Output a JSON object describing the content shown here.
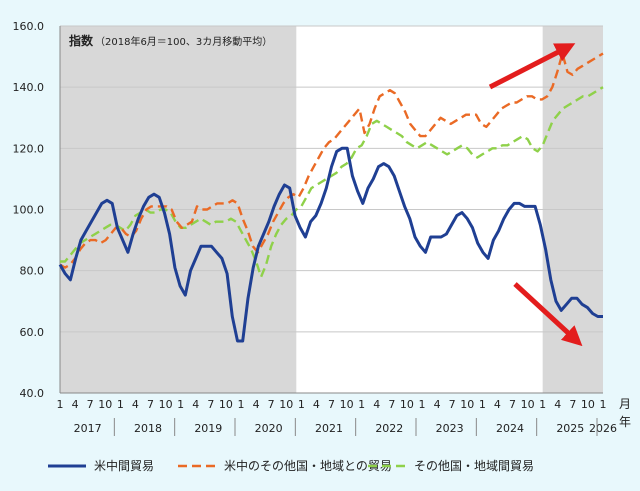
{
  "chart_data": {
    "type": "line",
    "title": "指数",
    "subtitle": "（2018年6月＝100、3カ月移動平均）",
    "x_unit_label": [
      "月",
      "年"
    ],
    "ylim": [
      40,
      160
    ],
    "yticks": [
      "40.0",
      "60.0",
      "80.0",
      "100.0",
      "120.0",
      "140.0",
      "160.0"
    ],
    "month_ticks": [
      "1",
      "4",
      "7",
      "10",
      "1",
      "4",
      "7",
      "10",
      "1",
      "4",
      "7",
      "10",
      "1",
      "4",
      "7",
      "10",
      "1",
      "4",
      "7",
      "10",
      "1",
      "4",
      "7",
      "10",
      "1",
      "4",
      "7",
      "10",
      "1",
      "4",
      "7",
      "10",
      "1",
      "4",
      "7",
      "10",
      "1"
    ],
    "year_labels": [
      "2017",
      "2018",
      "2019",
      "2020",
      "2021",
      "2022",
      "2023",
      "2024",
      "2025",
      "2026"
    ],
    "x_start": "2017-01",
    "x_end": "2026-01",
    "shaded_periods": [
      [
        "2017-01",
        "2020-12"
      ],
      [
        "2025-01",
        "2026-01"
      ]
    ],
    "grid": "horizontal",
    "legend_position": "bottom",
    "series": [
      {
        "name": "米中間貿易",
        "color": "#1f3f93",
        "style": "solid",
        "values": [
          82,
          79,
          77,
          84,
          90,
          93,
          96,
          99,
          102,
          103,
          102,
          94,
          90,
          86,
          92,
          97,
          101,
          104,
          105,
          104,
          99,
          92,
          81,
          75,
          72,
          80,
          84,
          88,
          88,
          88,
          86,
          84,
          79,
          65,
          57,
          57,
          71,
          81,
          88,
          92,
          96,
          101,
          105,
          108,
          107,
          98,
          94,
          91,
          96,
          98,
          102,
          107,
          114,
          119,
          120,
          120,
          111,
          106,
          102,
          107,
          110,
          114,
          115,
          114,
          111,
          106,
          101,
          97,
          91,
          88,
          86,
          91,
          91,
          91,
          92,
          95,
          98,
          99,
          97,
          94,
          89,
          86,
          84,
          90,
          93,
          97,
          100,
          102,
          102,
          101,
          101,
          101,
          95,
          87,
          77,
          70,
          67,
          69,
          71,
          71,
          69,
          68,
          66,
          65,
          65
        ]
      },
      {
        "name": "米中のその他国・地域との貿易",
        "color": "#ea6a25",
        "style": "dashed",
        "values": [
          82,
          81,
          82,
          84,
          87,
          89,
          90,
          90,
          89,
          90,
          92,
          94,
          94,
          92,
          91,
          93,
          97,
          100,
          101,
          101,
          101,
          101,
          100,
          96,
          94,
          95,
          96,
          101,
          100,
          100,
          101,
          102,
          102,
          102,
          103,
          102,
          97,
          93,
          88,
          86,
          89,
          92,
          96,
          99,
          102,
          104,
          105,
          104,
          107,
          111,
          114,
          117,
          120,
          122,
          123,
          125,
          127,
          129,
          131,
          133,
          125,
          128,
          133,
          137,
          138,
          139,
          138,
          135,
          132,
          128,
          126,
          124,
          124,
          126,
          128,
          130,
          129,
          128,
          129,
          130,
          131,
          131,
          131,
          128,
          127,
          129,
          131,
          133,
          134,
          135,
          135,
          136,
          137,
          137,
          136,
          136,
          137,
          140,
          145,
          151,
          145,
          144,
          146,
          147,
          148,
          149,
          150,
          151
        ]
      },
      {
        "name": "その他国・地域間貿易",
        "color": "#8fd14a",
        "style": "dashed",
        "values": [
          83,
          83,
          85,
          87,
          89,
          90,
          91,
          92,
          93,
          94,
          95,
          95,
          94,
          93,
          95,
          98,
          99,
          100,
          99,
          99,
          100,
          100,
          99,
          96,
          94,
          94,
          95,
          96,
          97,
          96,
          95,
          96,
          96,
          96,
          97,
          96,
          93,
          90,
          87,
          83,
          78,
          82,
          88,
          92,
          95,
          97,
          98,
          100,
          101,
          104,
          107,
          108,
          109,
          110,
          111,
          112,
          114,
          115,
          117,
          120,
          121,
          124,
          128,
          129,
          128,
          127,
          126,
          125,
          124,
          122,
          121,
          120,
          121,
          122,
          121,
          120,
          119,
          118,
          119,
          120,
          121,
          120,
          118,
          117,
          118,
          119,
          120,
          120,
          121,
          121,
          122,
          123,
          124,
          123,
          120,
          119,
          121,
          125,
          129,
          131,
          133,
          134,
          135,
          136,
          137,
          137,
          138,
          139,
          140
        ]
      }
    ]
  }
}
